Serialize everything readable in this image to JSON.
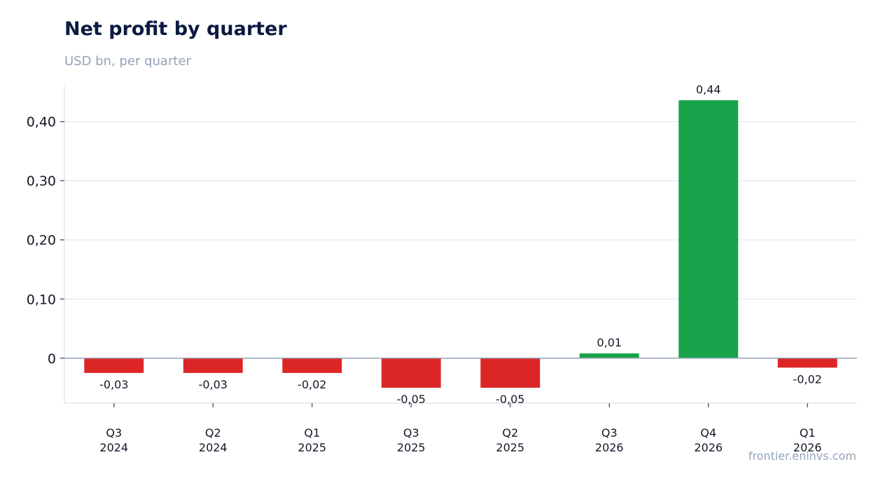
{
  "chart_data": {
    "type": "bar",
    "title": "Net profit by quarter",
    "subtitle": "USD bn, per quarter",
    "xlabel": "",
    "ylabel": "",
    "categories": [
      [
        "Q3",
        "2024"
      ],
      [
        "Q2",
        "2024"
      ],
      [
        "Q1",
        "2025"
      ],
      [
        "Q3",
        "2025"
      ],
      [
        "Q2",
        "2025"
      ],
      [
        "Q3",
        "2026"
      ],
      [
        "Q4",
        "2026"
      ],
      [
        "Q1",
        "2026"
      ]
    ],
    "values": [
      -0.025,
      -0.025,
      -0.025,
      -0.05,
      -0.05,
      0.008,
      0.436,
      -0.016
    ],
    "data_labels": [
      "-0,03",
      "-0,03",
      "-0,02",
      "-0,05",
      "-0,05",
      "0,01",
      "0,44",
      "-0,02"
    ],
    "ylim": [
      -0.076,
      0.46
    ],
    "yticks": [
      0,
      0.1,
      0.2,
      0.3,
      0.4
    ],
    "ytick_labels": [
      "0",
      "0,10",
      "0,20",
      "0,30",
      "0,40"
    ],
    "grid": true,
    "legend": "none",
    "colors": {
      "positive": "#18a34a",
      "negative": "#dc2626",
      "grid": "#e2e8f0",
      "zero_line": "#94a3b8",
      "axis": "#e5e7eb"
    }
  },
  "source": "frontier.eninvs.com"
}
